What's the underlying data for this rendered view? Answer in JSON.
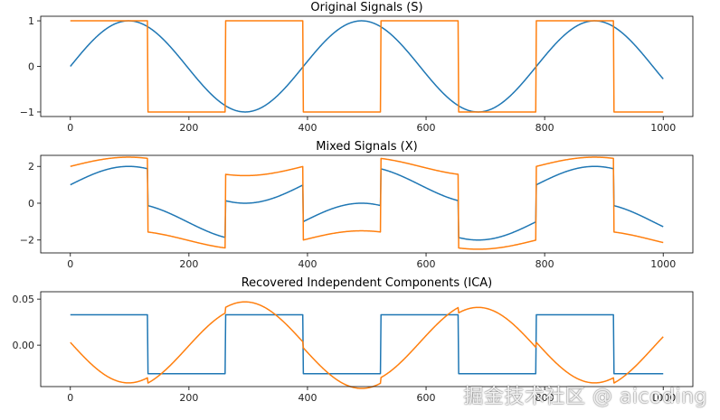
{
  "chart_data": [
    {
      "type": "line",
      "title": "Original Signals (S)",
      "xlim": [
        -50,
        1050
      ],
      "ylim": [
        -1.1,
        1.1
      ],
      "xticks": [
        0,
        200,
        400,
        600,
        800,
        1000
      ],
      "yticks": [
        -1,
        0,
        1
      ],
      "ytick_labels": [
        "−1",
        "0",
        "1"
      ],
      "grid": false,
      "series": [
        {
          "kind": "sine",
          "color": "#1f77b4",
          "amplitude": 1,
          "period": 393,
          "offset": 0,
          "x_range": [
            0,
            1000
          ]
        },
        {
          "kind": "square",
          "color": "#ff7f0e",
          "amplitude": 1,
          "half_period": 131,
          "x_range": [
            0,
            1000
          ]
        }
      ]
    },
    {
      "type": "line",
      "title": "Mixed Signals (X)",
      "xlim": [
        -50,
        1050
      ],
      "ylim": [
        -2.7,
        2.6
      ],
      "xticks": [
        0,
        200,
        400,
        600,
        800,
        1000
      ],
      "yticks": [
        -2,
        0,
        2
      ],
      "ytick_labels": [
        "−2",
        "0",
        "2"
      ],
      "grid": false,
      "series": [
        {
          "kind": "mix",
          "color": "#1f77b4",
          "sine_weight": 1,
          "square_weight": 1,
          "x_range": [
            0,
            1000
          ]
        },
        {
          "kind": "mix",
          "color": "#ff7f0e",
          "sine_weight": 0.5,
          "square_weight": 2,
          "x_range": [
            0,
            1000
          ]
        }
      ]
    },
    {
      "type": "line",
      "title": "Recovered Independent Components (ICA)",
      "xlim": [
        -50,
        1050
      ],
      "ylim": [
        -0.045,
        0.058
      ],
      "xticks": [
        0,
        200,
        400,
        600,
        800,
        1000
      ],
      "yticks": [
        0.0,
        0.05
      ],
      "ytick_labels": [
        "0.00",
        "0.05"
      ],
      "grid": false,
      "series": [
        {
          "kind": "ica-square",
          "color": "#1f77b4",
          "x_range": [
            0,
            1000
          ]
        },
        {
          "kind": "ica-sine",
          "color": "#ff7f0e",
          "x_range": [
            0,
            1000
          ]
        }
      ]
    }
  ],
  "watermark": "掘金技术社区 @ aicoding"
}
